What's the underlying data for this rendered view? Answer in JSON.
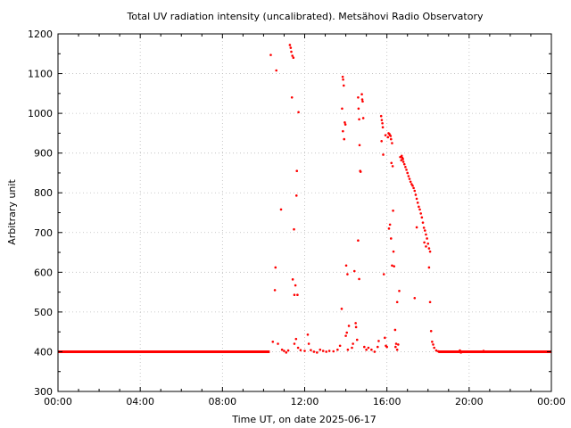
{
  "chart_data": {
    "type": "scatter",
    "title": "Total UV radiation intensity (uncalibrated). Metsähovi Radio Observatory",
    "xlabel": "Time UT, on date 2025-06-17",
    "ylabel": "Arbitrary unit",
    "xlim": [
      0,
      24
    ],
    "ylim": [
      300,
      1200
    ],
    "x_ticks": [
      0,
      4,
      8,
      12,
      16,
      20,
      24
    ],
    "x_tick_labels": [
      "00:00",
      "04:00",
      "08:00",
      "12:00",
      "16:00",
      "20:00",
      "00:00"
    ],
    "y_ticks": [
      300,
      400,
      500,
      600,
      700,
      800,
      900,
      1000,
      1100,
      1200
    ],
    "y_tick_labels": [
      "300",
      "400",
      "500",
      "600",
      "700",
      "800",
      "900",
      "1000",
      "1100",
      "1200"
    ],
    "grid": true,
    "marker_color": "#ff0000",
    "baseline": {
      "value": 400,
      "x_ranges": [
        [
          0,
          10.3
        ],
        [
          18.5,
          24
        ]
      ]
    },
    "points": [
      [
        10.35,
        1147
      ],
      [
        10.45,
        425
      ],
      [
        10.62,
        1108
      ],
      [
        10.58,
        612
      ],
      [
        10.55,
        555
      ],
      [
        10.7,
        420
      ],
      [
        10.85,
        758
      ],
      [
        10.9,
        405
      ],
      [
        11.0,
        402
      ],
      [
        11.1,
        398
      ],
      [
        11.2,
        403
      ],
      [
        11.28,
        1172
      ],
      [
        11.32,
        1165
      ],
      [
        11.35,
        1155
      ],
      [
        11.4,
        1145
      ],
      [
        11.45,
        1140
      ],
      [
        11.38,
        1040
      ],
      [
        11.42,
        582
      ],
      [
        11.48,
        708
      ],
      [
        11.5,
        543
      ],
      [
        11.55,
        567
      ],
      [
        11.62,
        855
      ],
      [
        11.6,
        793
      ],
      [
        11.65,
        543
      ],
      [
        11.7,
        1003
      ],
      [
        11.5,
        420
      ],
      [
        11.58,
        432
      ],
      [
        11.68,
        410
      ],
      [
        11.8,
        404
      ],
      [
        12.0,
        402
      ],
      [
        12.15,
        443
      ],
      [
        12.2,
        420
      ],
      [
        12.3,
        404
      ],
      [
        12.45,
        400
      ],
      [
        12.6,
        398
      ],
      [
        12.75,
        405
      ],
      [
        12.9,
        402
      ],
      [
        13.05,
        400
      ],
      [
        13.2,
        402
      ],
      [
        13.4,
        401
      ],
      [
        13.6,
        405
      ],
      [
        13.72,
        415
      ],
      [
        13.8,
        508
      ],
      [
        13.82,
        1012
      ],
      [
        13.85,
        1092
      ],
      [
        13.87,
        1085
      ],
      [
        13.9,
        1070
      ],
      [
        13.86,
        955
      ],
      [
        13.92,
        935
      ],
      [
        13.95,
        977
      ],
      [
        13.98,
        972
      ],
      [
        14.0,
        440
      ],
      [
        14.05,
        448
      ],
      [
        14.02,
        617
      ],
      [
        14.08,
        595
      ],
      [
        14.1,
        405
      ],
      [
        14.15,
        465
      ],
      [
        14.3,
        410
      ],
      [
        14.35,
        420
      ],
      [
        14.42,
        603
      ],
      [
        14.48,
        472
      ],
      [
        14.5,
        462
      ],
      [
        14.55,
        430
      ],
      [
        14.6,
        1040
      ],
      [
        14.62,
        1012
      ],
      [
        14.65,
        985
      ],
      [
        14.67,
        920
      ],
      [
        14.7,
        855
      ],
      [
        14.72,
        853
      ],
      [
        14.6,
        680
      ],
      [
        14.65,
        583
      ],
      [
        14.78,
        1048
      ],
      [
        14.8,
        1035
      ],
      [
        14.82,
        1030
      ],
      [
        14.85,
        988
      ],
      [
        14.9,
        412
      ],
      [
        15.0,
        405
      ],
      [
        15.1,
        410
      ],
      [
        15.25,
        405
      ],
      [
        15.4,
        400
      ],
      [
        15.55,
        412
      ],
      [
        15.6,
        427
      ],
      [
        15.72,
        993
      ],
      [
        15.75,
        983
      ],
      [
        15.78,
        975
      ],
      [
        15.8,
        965
      ],
      [
        15.74,
        930
      ],
      [
        15.82,
        896
      ],
      [
        15.85,
        595
      ],
      [
        15.9,
        435
      ],
      [
        15.95,
        415
      ],
      [
        16.0,
        412
      ],
      [
        15.93,
        945
      ],
      [
        16.05,
        940
      ],
      [
        16.08,
        950
      ],
      [
        16.12,
        948
      ],
      [
        16.15,
        945
      ],
      [
        16.18,
        943
      ],
      [
        16.2,
        935
      ],
      [
        16.25,
        925
      ],
      [
        16.1,
        710
      ],
      [
        16.15,
        720
      ],
      [
        16.2,
        685
      ],
      [
        16.22,
        875
      ],
      [
        16.28,
        867
      ],
      [
        16.3,
        755
      ],
      [
        16.32,
        652
      ],
      [
        16.25,
        617
      ],
      [
        16.35,
        615
      ],
      [
        16.4,
        455
      ],
      [
        16.42,
        412
      ],
      [
        16.45,
        420
      ],
      [
        16.5,
        405
      ],
      [
        16.55,
        418
      ],
      [
        16.5,
        525
      ],
      [
        16.6,
        553
      ],
      [
        16.65,
        890
      ],
      [
        16.7,
        882
      ],
      [
        16.72,
        893
      ],
      [
        16.75,
        888
      ],
      [
        16.78,
        885
      ],
      [
        16.8,
        878
      ],
      [
        16.85,
        872
      ],
      [
        16.9,
        865
      ],
      [
        16.95,
        858
      ],
      [
        17.0,
        850
      ],
      [
        17.05,
        842
      ],
      [
        17.1,
        835
      ],
      [
        17.15,
        828
      ],
      [
        17.2,
        822
      ],
      [
        17.25,
        818
      ],
      [
        17.3,
        812
      ],
      [
        17.35,
        805
      ],
      [
        17.4,
        795
      ],
      [
        17.45,
        785
      ],
      [
        17.5,
        775
      ],
      [
        17.55,
        765
      ],
      [
        17.6,
        758
      ],
      [
        17.65,
        748
      ],
      [
        17.7,
        738
      ],
      [
        17.75,
        725
      ],
      [
        17.8,
        712
      ],
      [
        17.85,
        705
      ],
      [
        17.9,
        695
      ],
      [
        17.95,
        685
      ],
      [
        18.0,
        672
      ],
      [
        18.05,
        660
      ],
      [
        18.1,
        652
      ],
      [
        17.45,
        713
      ],
      [
        17.35,
        535
      ],
      [
        17.82,
        675
      ],
      [
        17.9,
        665
      ],
      [
        18.05,
        612
      ],
      [
        18.1,
        525
      ],
      [
        18.15,
        452
      ],
      [
        18.2,
        425
      ],
      [
        18.25,
        418
      ],
      [
        18.3,
        410
      ],
      [
        18.4,
        403
      ],
      [
        18.5,
        401
      ],
      [
        19.55,
        403
      ],
      [
        19.6,
        398
      ],
      [
        20.7,
        402
      ]
    ]
  }
}
